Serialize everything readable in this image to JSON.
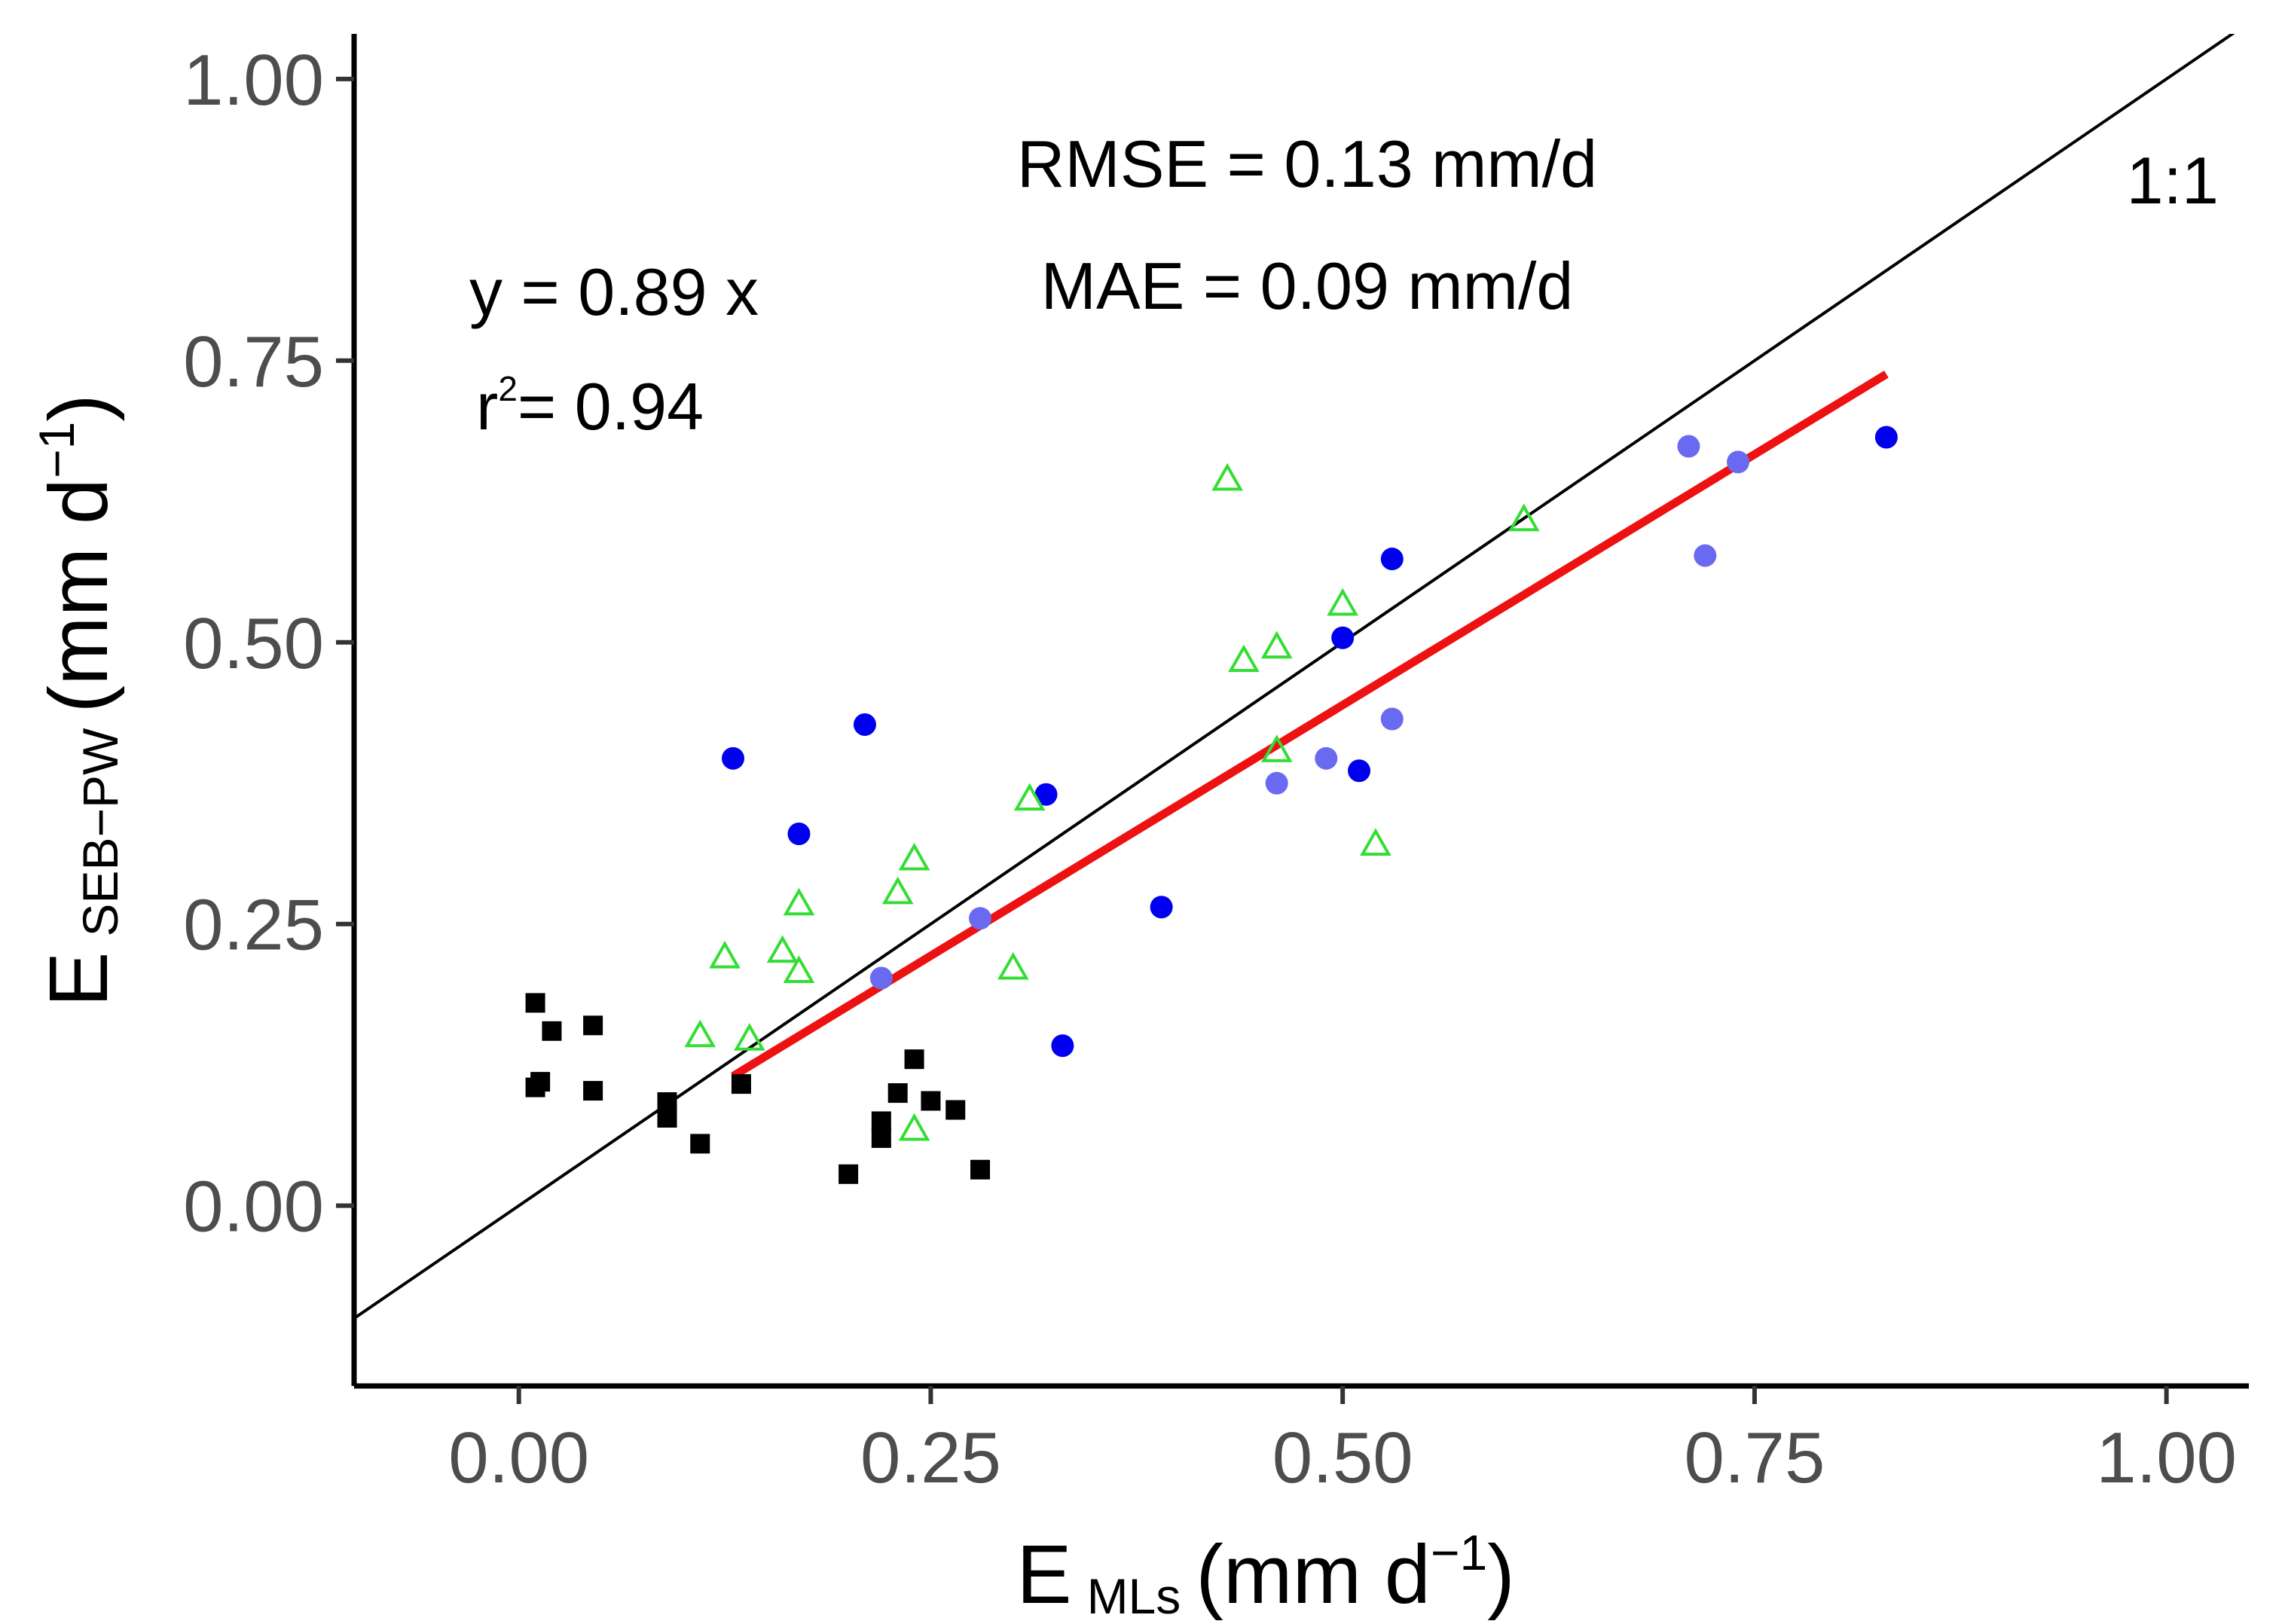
{
  "chart_data": {
    "type": "scatter",
    "title": "",
    "xlabel": {
      "main": "E",
      "sub": "MLs",
      "unit_open": "(mm d",
      "unit_sup": "−1",
      "unit_close": ")"
    },
    "ylabel": {
      "main": "E",
      "sub": "SEB−PW",
      "unit_open": "(mm d",
      "unit_sup": "−1",
      "unit_close": ")"
    },
    "xlim": [
      -0.1,
      1.05
    ],
    "ylim": [
      -0.16,
      1.04
    ],
    "x_ticks": [
      0.0,
      0.25,
      0.5,
      0.75,
      1.0
    ],
    "x_tick_labels": [
      "0.00",
      "0.25",
      "0.50",
      "0.75",
      "1.00"
    ],
    "y_ticks": [
      0.0,
      0.25,
      0.5,
      0.75,
      1.0
    ],
    "y_tick_labels": [
      "0.00",
      "0.25",
      "0.50",
      "0.75",
      "1.00"
    ],
    "grid": false,
    "legend": "none",
    "annotations": {
      "rmse": "RMSE = 0.13 mm/d",
      "mae": "MAE = 0.09 mm/d",
      "equation": "y = 0.89 x",
      "r2_prefix": "r",
      "r2_sup": "2",
      "r2_value": "= 0.94",
      "one_to_one": "1:1"
    },
    "one_to_one_line": {
      "x": [
        -0.1,
        1.05
      ],
      "y": [
        -0.1,
        1.05
      ],
      "color": "#000000"
    },
    "fit_line": {
      "x": [
        0.13,
        0.83
      ],
      "y": [
        0.115,
        0.738
      ],
      "color": "#ee1111"
    },
    "series": [
      {
        "marker": "square",
        "color": "#000000",
        "points": [
          [
            0.01,
            0.18
          ],
          [
            0.02,
            0.155
          ],
          [
            0.045,
            0.16
          ],
          [
            0.01,
            0.105
          ],
          [
            0.013,
            0.11
          ],
          [
            0.045,
            0.102
          ],
          [
            0.09,
            0.092
          ],
          [
            0.09,
            0.078
          ],
          [
            0.11,
            0.055
          ],
          [
            0.135,
            0.108
          ],
          [
            0.2,
            0.028
          ],
          [
            0.22,
            0.075
          ],
          [
            0.22,
            0.06
          ],
          [
            0.23,
            0.1
          ],
          [
            0.24,
            0.13
          ],
          [
            0.25,
            0.093
          ],
          [
            0.265,
            0.085
          ],
          [
            0.28,
            0.032
          ]
        ]
      },
      {
        "marker": "circle",
        "color": "#0000ee",
        "points": [
          [
            0.13,
            0.397
          ],
          [
            0.17,
            0.33
          ],
          [
            0.21,
            0.427
          ],
          [
            0.32,
            0.365
          ],
          [
            0.33,
            0.142
          ],
          [
            0.39,
            0.265
          ],
          [
            0.5,
            0.504
          ],
          [
            0.51,
            0.386
          ],
          [
            0.53,
            0.574
          ],
          [
            0.83,
            0.682
          ]
        ]
      },
      {
        "marker": "circle",
        "color": "#6a6af0",
        "points": [
          [
            0.22,
            0.202
          ],
          [
            0.28,
            0.255
          ],
          [
            0.46,
            0.375
          ],
          [
            0.49,
            0.397
          ],
          [
            0.53,
            0.432
          ],
          [
            0.71,
            0.674
          ],
          [
            0.72,
            0.577
          ],
          [
            0.74,
            0.66
          ]
        ]
      },
      {
        "marker": "triangle",
        "color": "#33dd33",
        "points": [
          [
            0.11,
            0.15
          ],
          [
            0.125,
            0.22
          ],
          [
            0.14,
            0.147
          ],
          [
            0.16,
            0.225
          ],
          [
            0.17,
            0.267
          ],
          [
            0.17,
            0.207
          ],
          [
            0.23,
            0.277
          ],
          [
            0.24,
            0.307
          ],
          [
            0.24,
            0.067
          ],
          [
            0.3,
            0.21
          ],
          [
            0.31,
            0.36
          ],
          [
            0.43,
            0.644
          ],
          [
            0.44,
            0.483
          ],
          [
            0.46,
            0.495
          ],
          [
            0.46,
            0.403
          ],
          [
            0.5,
            0.533
          ],
          [
            0.52,
            0.32
          ],
          [
            0.61,
            0.608
          ]
        ]
      }
    ]
  }
}
